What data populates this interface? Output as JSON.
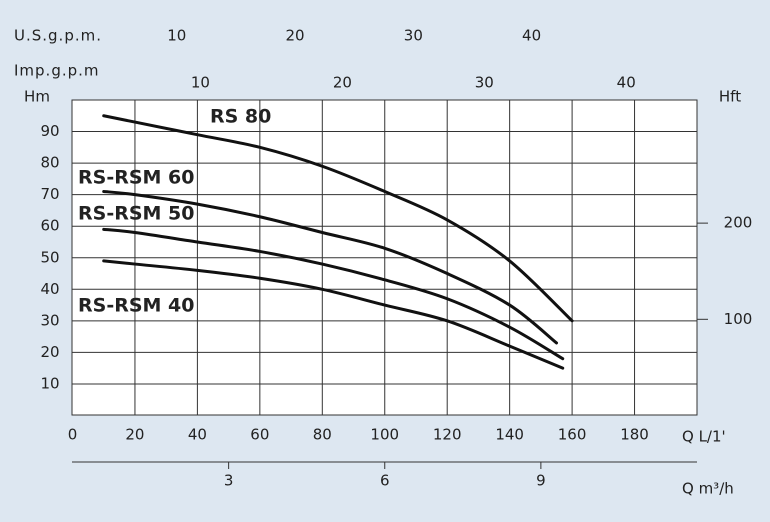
{
  "chart_data": {
    "type": "line",
    "x_label": "Q L/1'",
    "y_label": "Hm",
    "y2_label": "Hft",
    "xlim": [
      0,
      200
    ],
    "xticks": [
      0,
      20,
      40,
      60,
      80,
      100,
      120,
      140,
      160,
      180
    ],
    "ylim": [
      0,
      100
    ],
    "yticks": [
      10,
      20,
      30,
      40,
      50,
      60,
      70,
      80,
      90
    ],
    "y2lim": [
      0,
      328
    ],
    "y2ticks": [
      100,
      200
    ],
    "grid": true,
    "secondary_x_axes": [
      {
        "label": "U.S.g.p.m.",
        "position": "top",
        "xlim": [
          0,
          52.8
        ],
        "xticks": [
          10,
          20,
          30,
          40
        ]
      },
      {
        "label": "Imp.g.p.m",
        "position": "top",
        "xlim": [
          0,
          44
        ],
        "xticks": [
          10,
          20,
          30,
          40
        ]
      },
      {
        "label": "Q m³/h",
        "position": "bottom",
        "xlim": [
          0,
          12
        ],
        "xticks": [
          3,
          6,
          9
        ]
      }
    ],
    "series": [
      {
        "name": "RS 80",
        "color": "#111111",
        "x": [
          10,
          20,
          40,
          60,
          80,
          100,
          120,
          140,
          160
        ],
        "values": [
          95,
          93,
          89,
          85,
          79,
          71,
          62,
          49,
          30
        ]
      },
      {
        "name": "RS-RSM 60",
        "color": "#111111",
        "x": [
          10,
          20,
          40,
          60,
          80,
          100,
          120,
          140,
          155
        ],
        "values": [
          71,
          70,
          67,
          63,
          58,
          53,
          45,
          35,
          23
        ]
      },
      {
        "name": "RS-RSM 50",
        "color": "#111111",
        "x": [
          10,
          20,
          40,
          60,
          80,
          100,
          120,
          140,
          157
        ],
        "values": [
          59,
          58,
          55,
          52,
          48,
          43,
          37,
          28,
          18
        ]
      },
      {
        "name": "RS-RSM 40",
        "color": "#111111",
        "x": [
          10,
          20,
          40,
          60,
          80,
          100,
          120,
          140,
          157
        ],
        "values": [
          49,
          48,
          46,
          43.5,
          40,
          35,
          30,
          22,
          15
        ]
      }
    ]
  }
}
